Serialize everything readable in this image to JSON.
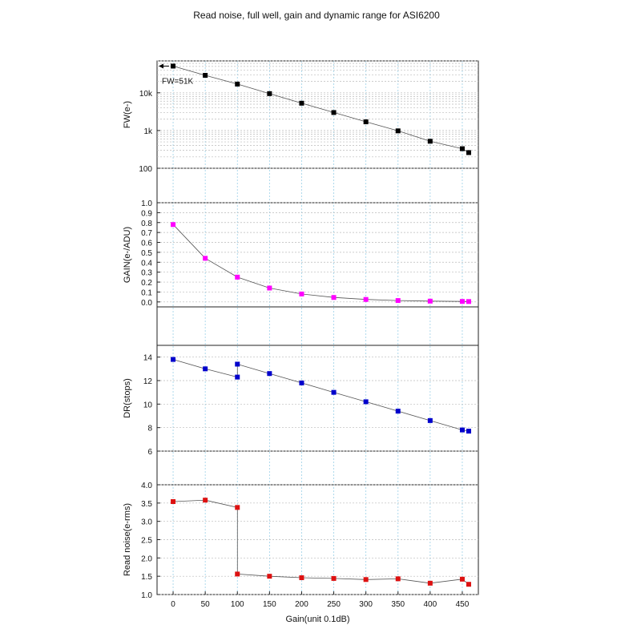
{
  "title": "Read noise, full well, gain and dynamic range for ASI6200",
  "x_label": "Gain(unit 0.1dB)",
  "x_ticks": [
    0,
    50,
    100,
    150,
    200,
    250,
    300,
    350,
    400,
    450
  ],
  "x_range": [
    -25,
    475
  ],
  "chart_data": [
    {
      "type": "line",
      "panel": "fw",
      "ylabel": "FW(e-)",
      "yscale": "log",
      "ylim": [
        100,
        70000
      ],
      "ytick_values": [
        100,
        1000,
        10000
      ],
      "ytick_labels": [
        "100",
        "1k",
        "10k"
      ],
      "color": "#000000",
      "annotation": "FW=51K",
      "series": [
        {
          "x": [
            0,
            50,
            100,
            150,
            200,
            250,
            300,
            350,
            400,
            450,
            460
          ],
          "y": [
            51000,
            29000,
            17000,
            9500,
            5300,
            3000,
            1700,
            980,
            520,
            330,
            260
          ]
        }
      ]
    },
    {
      "type": "line",
      "panel": "gain",
      "ylabel": "GAIN(e-/ADU)",
      "yscale": "linear",
      "ylim": [
        -0.05,
        1.0
      ],
      "ytick_values": [
        0.0,
        0.1,
        0.2,
        0.3,
        0.4,
        0.5,
        0.6,
        0.7,
        0.8,
        0.9,
        1.0
      ],
      "ytick_labels": [
        "0.0",
        "0.1",
        "0.2",
        "0.3",
        "0.4",
        "0.5",
        "0.6",
        "0.7",
        "0.8",
        "0.9",
        "1.0"
      ],
      "color": "#ff00ff",
      "series": [
        {
          "x": [
            0,
            50,
            100,
            150,
            200,
            250,
            300,
            350,
            400,
            450,
            460
          ],
          "y": [
            0.78,
            0.44,
            0.25,
            0.14,
            0.08,
            0.045,
            0.025,
            0.014,
            0.008,
            0.005,
            0.004
          ]
        }
      ]
    },
    {
      "type": "line",
      "panel": "dr",
      "ylabel": "DR(stops)",
      "yscale": "linear",
      "ylim": [
        6,
        15
      ],
      "ytick_values": [
        6,
        8,
        10,
        12,
        14
      ],
      "ytick_labels": [
        "6",
        "8",
        "10",
        "12",
        "14"
      ],
      "color": "#0000cc",
      "series": [
        {
          "x": [
            0,
            50,
            100,
            100,
            150,
            200,
            250,
            300,
            350,
            400,
            450,
            460
          ],
          "y": [
            13.8,
            13.0,
            12.3,
            13.4,
            12.6,
            11.8,
            11.0,
            10.2,
            9.4,
            8.6,
            7.8,
            7.7
          ]
        }
      ]
    },
    {
      "type": "line",
      "panel": "rn",
      "ylabel": "Read noise(e-rms)",
      "yscale": "linear",
      "ylim": [
        1.0,
        4.0
      ],
      "ytick_values": [
        1.0,
        1.5,
        2.0,
        2.5,
        3.0,
        3.5,
        4.0
      ],
      "ytick_labels": [
        "1.0",
        "1.5",
        "2.0",
        "2.5",
        "3.0",
        "3.5",
        "4.0"
      ],
      "color": "#dd1111",
      "series": [
        {
          "x": [
            0,
            50,
            100,
            100,
            150,
            200,
            250,
            300,
            350,
            400,
            450,
            460
          ],
          "y": [
            3.54,
            3.58,
            3.38,
            1.56,
            1.5,
            1.46,
            1.44,
            1.41,
            1.43,
            1.31,
            1.42,
            1.28
          ]
        }
      ]
    }
  ]
}
